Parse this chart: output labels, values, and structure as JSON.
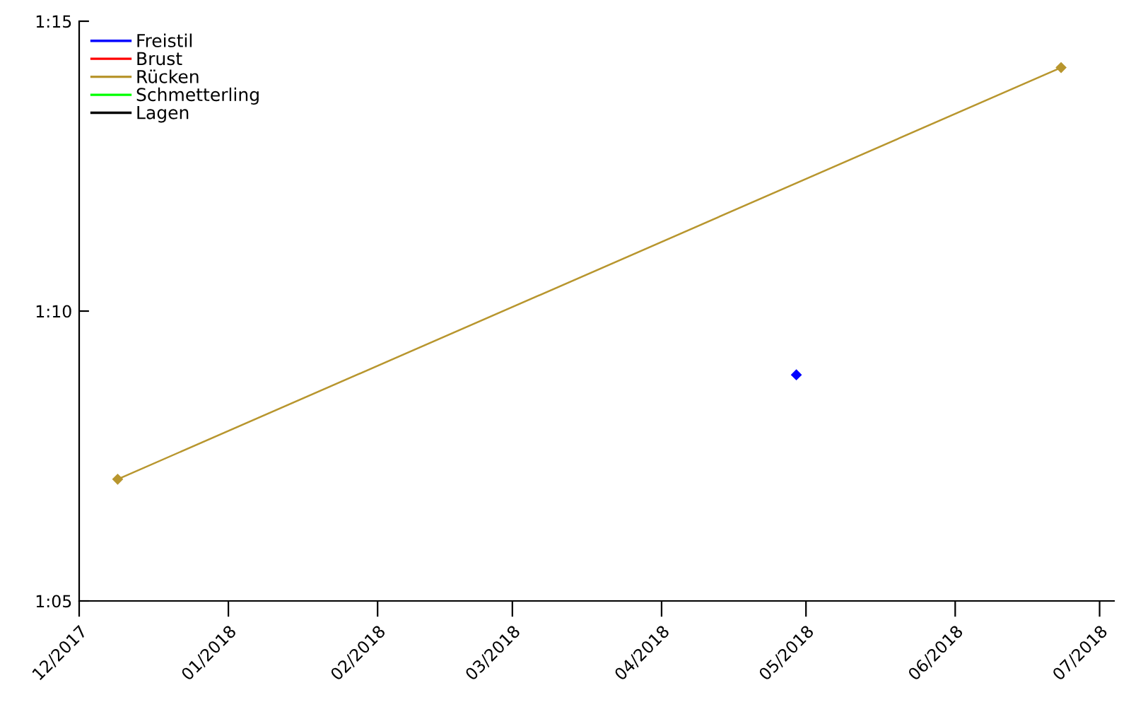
{
  "chart_data": {
    "type": "line",
    "marker": "diamond",
    "legend": "top left",
    "grid": false,
    "xlim": [
      "2017-12-01",
      "2018-07-04"
    ],
    "xticks": [
      {
        "value": "2017-12-01",
        "label": "12/2017"
      },
      {
        "value": "2018-01-01",
        "label": "01/2018"
      },
      {
        "value": "2018-02-01",
        "label": "02/2018"
      },
      {
        "value": "2018-03-01",
        "label": "03/2018"
      },
      {
        "value": "2018-04-01",
        "label": "04/2018"
      },
      {
        "value": "2018-05-01",
        "label": "05/2018"
      },
      {
        "value": "2018-06-01",
        "label": "06/2018"
      },
      {
        "value": "2018-07-01",
        "label": "07/2018"
      }
    ],
    "ylim": [
      65,
      75
    ],
    "yticks": [
      {
        "value": 65,
        "label": "1:05"
      },
      {
        "value": 70,
        "label": "1:10"
      },
      {
        "value": 75,
        "label": "1:15"
      }
    ],
    "series": [
      {
        "name": "Freistil",
        "color": "#0000ff",
        "x": [
          "2018-04-29"
        ],
        "values": [
          68.9
        ]
      },
      {
        "name": "Brust",
        "color": "#ff0000"
      },
      {
        "name": "Rücken",
        "color": "#b8962e",
        "x": [
          "2017-12-09",
          "2018-06-23"
        ],
        "values": [
          67.1,
          74.2
        ]
      },
      {
        "name": "Schmetterling",
        "color": "#00ff00"
      },
      {
        "name": "Lagen",
        "color": "#000000"
      }
    ]
  }
}
